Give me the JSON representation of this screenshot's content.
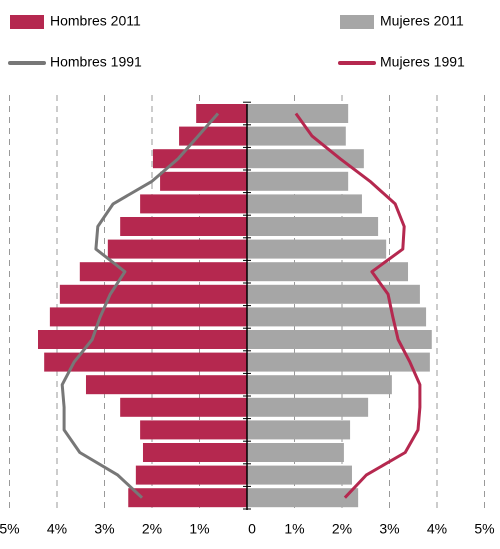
{
  "chart_data": {
    "type": "pyramid",
    "categories": [
      null,
      null,
      null,
      null,
      null,
      null,
      null,
      null,
      null,
      null,
      null,
      null,
      null,
      null,
      null,
      null,
      null,
      null
    ],
    "series": [
      {
        "name": "Hombres 2011",
        "kind": "bar",
        "side": "left",
        "color": "#b5284f",
        "values": [
          1.07,
          1.43,
          1.98,
          1.83,
          2.25,
          2.67,
          2.93,
          3.52,
          3.94,
          4.15,
          4.4,
          4.27,
          3.39,
          2.67,
          2.25,
          2.19,
          2.34,
          2.5
        ]
      },
      {
        "name": "Mujeres 2011",
        "kind": "bar",
        "side": "right",
        "color": "#a6a6a6",
        "values": [
          2.13,
          2.08,
          2.46,
          2.13,
          2.42,
          2.76,
          2.93,
          3.39,
          3.64,
          3.77,
          3.89,
          3.85,
          3.05,
          2.55,
          2.17,
          2.04,
          2.21,
          2.34
        ]
      },
      {
        "name": "Hombres 1991",
        "kind": "line",
        "side": "left",
        "color": "#777777",
        "values": [
          0.61,
          1.03,
          1.45,
          2.0,
          2.82,
          3.14,
          3.18,
          2.57,
          2.88,
          3.09,
          3.26,
          3.64,
          3.89,
          3.85,
          3.85,
          3.52,
          2.72,
          2.21
        ]
      },
      {
        "name": "Mujeres 1991",
        "kind": "line",
        "side": "right",
        "color": "#b5284f",
        "values": [
          1.03,
          1.37,
          1.96,
          2.59,
          3.12,
          3.31,
          3.28,
          2.63,
          2.97,
          3.07,
          3.18,
          3.43,
          3.64,
          3.64,
          3.6,
          3.33,
          2.51,
          2.06
        ]
      }
    ],
    "xlim": [
      0,
      5
    ],
    "xticks_left": [
      {
        "value": 5,
        "label": "5%"
      },
      {
        "value": 4,
        "label": "4%"
      },
      {
        "value": 3,
        "label": "3%"
      },
      {
        "value": 2,
        "label": "2%"
      },
      {
        "value": 1,
        "label": "1%"
      }
    ],
    "xticks_right": [
      0,
      {
        "value": 1,
        "label": "1%"
      },
      {
        "value": 2,
        "label": "2%"
      },
      {
        "value": 3,
        "label": "3%"
      },
      {
        "value": 4,
        "label": "4%"
      },
      {
        "value": 5,
        "label": "5%"
      }
    ],
    "grid": true
  }
}
